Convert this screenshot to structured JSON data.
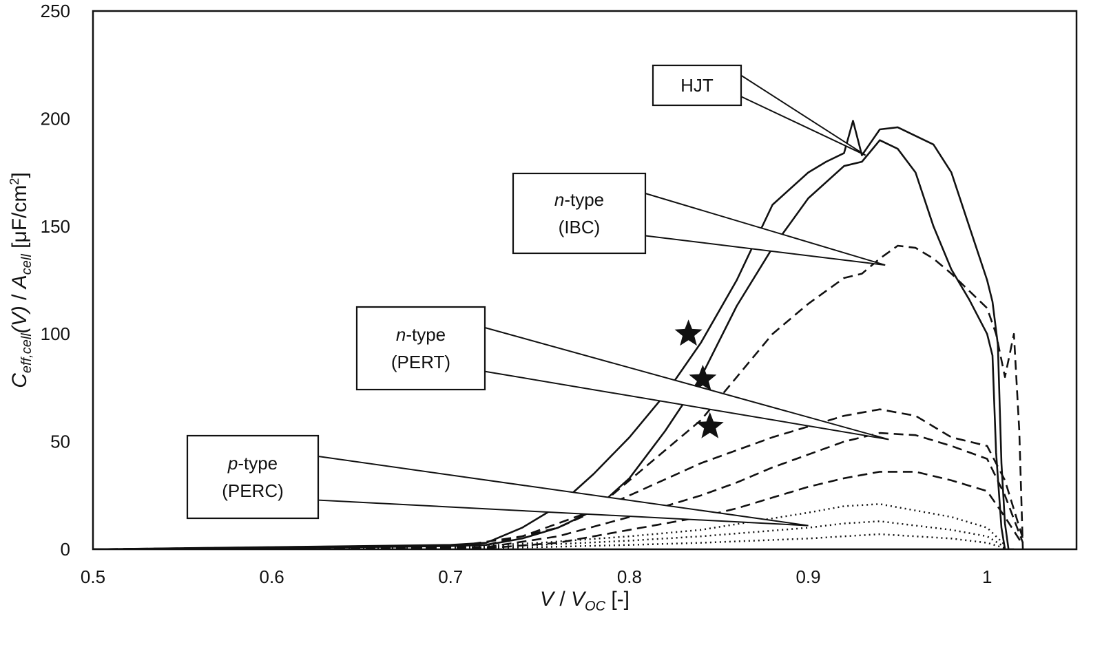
{
  "chart_data": {
    "type": "line",
    "title": "",
    "xlabel": {
      "main": "V",
      "sep": " / ",
      "sub_base": "V",
      "sub": "OC",
      "unit": " [-]"
    },
    "ylabel": {
      "c": "C",
      "c_sub": "eff,cell",
      "v": "(V)",
      "sep": " / ",
      "a": "A",
      "a_sub": "cell",
      "unit": " [μF/cm",
      "unit_sup": "2",
      "unit_end": "]"
    },
    "xlim": [
      0.5,
      1.05
    ],
    "ylim": [
      0,
      250
    ],
    "x_ticks": [
      "0.5",
      "0.6",
      "0.7",
      "0.8",
      "0.9",
      "1"
    ],
    "y_ticks": [
      "0",
      "50",
      "100",
      "150",
      "200",
      "250"
    ],
    "grid": false,
    "series": [
      {
        "id": "hjt-a",
        "style": "solid",
        "x": [
          0.5,
          0.6,
          0.7,
          0.72,
          0.74,
          0.76,
          0.78,
          0.8,
          0.82,
          0.84,
          0.86,
          0.88,
          0.9,
          0.91,
          0.92,
          0.925,
          0.93,
          0.94,
          0.95,
          0.96,
          0.97,
          0.98,
          0.99,
          1.0,
          1.003,
          1.006,
          1.008,
          1.01,
          1.012,
          1.015
        ],
        "y": [
          0,
          1,
          2,
          3,
          10,
          20,
          35,
          52,
          72,
          96,
          125,
          160,
          175,
          180,
          184,
          199,
          183,
          195,
          196,
          192,
          188,
          175,
          150,
          125,
          115,
          95,
          40,
          12,
          0,
          0
        ]
      },
      {
        "id": "hjt-b",
        "style": "solid",
        "x": [
          0.5,
          0.6,
          0.7,
          0.72,
          0.74,
          0.76,
          0.78,
          0.8,
          0.82,
          0.84,
          0.86,
          0.88,
          0.9,
          0.92,
          0.93,
          0.94,
          0.95,
          0.96,
          0.97,
          0.98,
          0.99,
          1.0,
          1.003,
          1.005,
          1.008,
          1.01
        ],
        "y": [
          0,
          0.5,
          1.5,
          2,
          5,
          10,
          18,
          33,
          55,
          80,
          113,
          140,
          163,
          178,
          180,
          190,
          186,
          175,
          150,
          130,
          116,
          100,
          90,
          45,
          10,
          0
        ]
      },
      {
        "id": "ibc",
        "style": "dashed",
        "x": [
          0.5,
          0.7,
          0.74,
          0.78,
          0.8,
          0.82,
          0.84,
          0.86,
          0.88,
          0.9,
          0.92,
          0.93,
          0.94,
          0.95,
          0.96,
          0.97,
          0.98,
          0.99,
          1.0,
          1.005,
          1.01,
          1.015,
          1.018,
          1.02
        ],
        "y": [
          0,
          1,
          6,
          18,
          32,
          46,
          60,
          80,
          100,
          114,
          126,
          128,
          135,
          141,
          140,
          135,
          128,
          120,
          112,
          100,
          80,
          100,
          55,
          0
        ]
      },
      {
        "id": "pert-a",
        "style": "dashed",
        "x": [
          0.5,
          0.72,
          0.76,
          0.8,
          0.84,
          0.86,
          0.88,
          0.9,
          0.92,
          0.94,
          0.96,
          0.98,
          1.0,
          1.01,
          1.02
        ],
        "y": [
          0,
          2,
          10,
          25,
          40,
          46,
          52,
          57,
          62,
          65,
          62,
          52,
          48,
          32,
          5
        ]
      },
      {
        "id": "pert-b",
        "style": "dashed",
        "x": [
          0.5,
          0.72,
          0.76,
          0.8,
          0.84,
          0.86,
          0.88,
          0.9,
          0.92,
          0.94,
          0.96,
          0.98,
          1.0,
          1.01,
          1.02
        ],
        "y": [
          0,
          1,
          6,
          15,
          25,
          31,
          38,
          44,
          50,
          54,
          53,
          48,
          42,
          25,
          3
        ]
      },
      {
        "id": "pert-c",
        "style": "dashed",
        "x": [
          0.5,
          0.72,
          0.76,
          0.8,
          0.84,
          0.86,
          0.88,
          0.9,
          0.92,
          0.94,
          0.96,
          0.98,
          1.0,
          1.01,
          1.02
        ],
        "y": [
          0,
          0.5,
          3,
          9,
          15,
          19,
          24,
          29,
          33,
          36,
          36,
          32,
          27,
          15,
          2
        ]
      },
      {
        "id": "perc-a",
        "style": "dotted",
        "x": [
          0.5,
          0.7,
          0.75,
          0.8,
          0.84,
          0.87,
          0.9,
          0.92,
          0.94,
          0.96,
          0.98,
          1.0,
          1.01
        ],
        "y": [
          0,
          1,
          3,
          6,
          9,
          13,
          17,
          20,
          21,
          18,
          15,
          10,
          2
        ]
      },
      {
        "id": "perc-b",
        "style": "dotted",
        "x": [
          0.5,
          0.7,
          0.75,
          0.8,
          0.84,
          0.87,
          0.9,
          0.92,
          0.94,
          0.96,
          0.98,
          1.0,
          1.01
        ],
        "y": [
          0,
          0.5,
          2,
          4,
          6,
          8,
          10,
          12,
          13,
          11,
          9,
          6,
          1
        ]
      },
      {
        "id": "perc-c",
        "style": "dotted",
        "x": [
          0.5,
          0.7,
          0.75,
          0.8,
          0.84,
          0.87,
          0.9,
          0.92,
          0.94,
          0.96,
          0.98,
          1.0,
          1.01
        ],
        "y": [
          0,
          0.3,
          1,
          2,
          3,
          4,
          5,
          6,
          7,
          6,
          5,
          3,
          0.5
        ]
      }
    ],
    "markers": [
      {
        "shape": "star",
        "x": 0.833,
        "y": 100
      },
      {
        "shape": "star",
        "x": 0.841,
        "y": 79
      },
      {
        "shape": "star",
        "x": 0.845,
        "y": 57
      }
    ],
    "annotations": [
      {
        "id": "hjt",
        "lines": [
          {
            "italic": "",
            "rest": "HJT"
          }
        ],
        "target": [
          0.932,
          183
        ]
      },
      {
        "id": "ibc",
        "lines": [
          {
            "italic": "n",
            "rest": "-type"
          },
          {
            "italic": "",
            "rest": "(IBC)"
          }
        ],
        "target": [
          0.943,
          132
        ]
      },
      {
        "id": "pert",
        "lines": [
          {
            "italic": "n",
            "rest": "-type"
          },
          {
            "italic": "",
            "rest": "(PERT)"
          }
        ],
        "target": [
          0.945,
          51
        ]
      },
      {
        "id": "perc",
        "lines": [
          {
            "italic": "p",
            "rest": "-type"
          },
          {
            "italic": "",
            "rest": "(PERC)"
          }
        ],
        "target": [
          0.9,
          11
        ]
      }
    ]
  }
}
